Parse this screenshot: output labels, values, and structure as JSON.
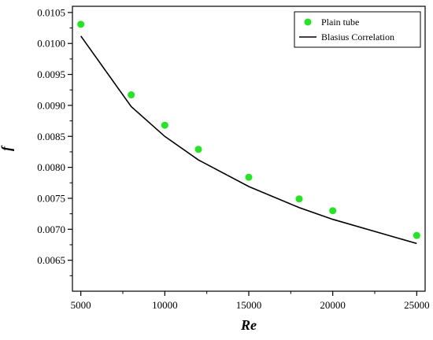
{
  "chart_data": {
    "type": "scatter",
    "xlabel": "Re",
    "ylabel": "f",
    "xlim": [
      4500,
      25500
    ],
    "ylim": [
      0.006,
      0.0106
    ],
    "x_ticks": [
      5000,
      10000,
      15000,
      20000,
      25000
    ],
    "x_tick_labels": [
      "5000",
      "10000",
      "15000",
      "20000",
      "25000"
    ],
    "y_ticks": [
      0.0065,
      0.007,
      0.0075,
      0.008,
      0.0085,
      0.009,
      0.0095,
      0.01,
      0.0105
    ],
    "y_tick_labels": [
      "0.0065",
      "0.0070",
      "0.0075",
      "0.0080",
      "0.0085",
      "0.0090",
      "0.0095",
      "0.0100",
      "0.0105"
    ],
    "legend_position": "top-right",
    "grid": false,
    "series": [
      {
        "name": "Plain tube",
        "kind": "scatter",
        "color": "#22e622",
        "x": [
          5000,
          8000,
          10000,
          12000,
          15000,
          18000,
          20000,
          25000
        ],
        "y": [
          0.01031,
          0.00917,
          0.00868,
          0.00829,
          0.00784,
          0.00749,
          0.0073,
          0.0069
        ]
      },
      {
        "name": "Blasius Correlation",
        "kind": "line",
        "color": "#000000",
        "x": [
          5000,
          8000,
          10000,
          12000,
          15000,
          18000,
          20000,
          25000
        ],
        "y": [
          0.01012,
          0.00898,
          0.0085,
          0.00812,
          0.00769,
          0.00735,
          0.00716,
          0.00677
        ]
      }
    ]
  }
}
